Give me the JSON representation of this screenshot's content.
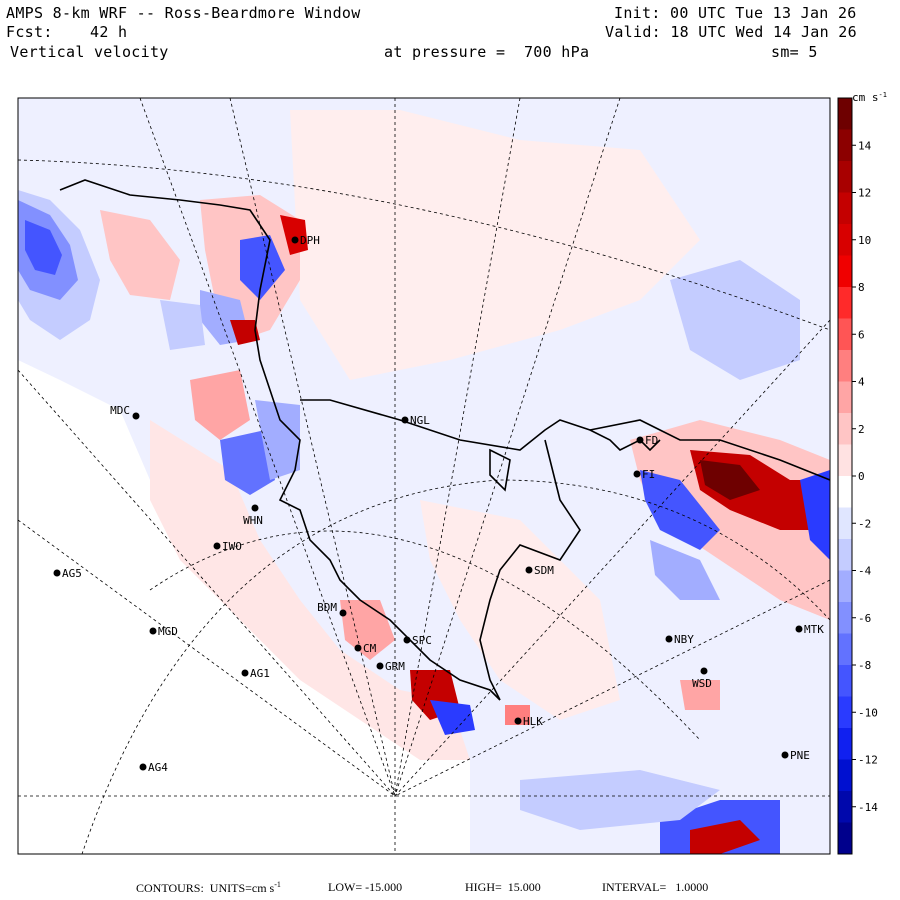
{
  "header": {
    "title": "AMPS 8-km WRF -- Ross-Beardmore Window",
    "forecast_label": "Fcst:",
    "forecast_hours": "42 h",
    "variable": "Vertical velocity",
    "init": "Init: 00 UTC Tue 13 Jan 26",
    "valid": "Valid: 18 UTC Wed 14 Jan 26",
    "pressure": "at pressure =  700 hPa",
    "smoothing": "sm= 5"
  },
  "colorbar": {
    "units": "cm s",
    "units_exp": "-1",
    "ticks": [
      "14",
      "12",
      "10",
      "8",
      "6",
      "4",
      "2",
      "0",
      "-2",
      "-4",
      "-6",
      "-8",
      "-10",
      "-12",
      "-14"
    ],
    "colors": [
      "#6e0000",
      "#8c0000",
      "#a80000",
      "#c40000",
      "#d80000",
      "#f00000",
      "#ff2a2a",
      "#ff5555",
      "#ff7f7f",
      "#ffa5a5",
      "#ffc5c5",
      "#ffe2e2",
      "#ffffff",
      "#e0e6ff",
      "#c4ccff",
      "#a2adff",
      "#8290ff",
      "#6272ff",
      "#4455ff",
      "#2a3bff",
      "#1020f0",
      "#0010d0",
      "#0008ac",
      "#00008c"
    ]
  },
  "stations": [
    {
      "id": "DPH",
      "label": "DPH"
    },
    {
      "id": "NGL",
      "label": "NGL"
    },
    {
      "id": "MDC",
      "label": "MDC"
    },
    {
      "id": "FD",
      "label": "FD"
    },
    {
      "id": "FI",
      "label": "FI"
    },
    {
      "id": "WHN",
      "label": "WHN"
    },
    {
      "id": "IWO",
      "label": "IWO"
    },
    {
      "id": "AG5",
      "label": "AG5"
    },
    {
      "id": "SDM",
      "label": "SDM"
    },
    {
      "id": "BDM",
      "label": "BDM"
    },
    {
      "id": "SPC",
      "label": "SPC"
    },
    {
      "id": "MGD",
      "label": "MGD"
    },
    {
      "id": "NBY",
      "label": "NBY"
    },
    {
      "id": "MTK",
      "label": "MTK"
    },
    {
      "id": "GRM",
      "label": "GRM"
    },
    {
      "id": "CM",
      "label": "CM"
    },
    {
      "id": "AG1",
      "label": "AG1"
    },
    {
      "id": "WSD",
      "label": "WSD"
    },
    {
      "id": "HLK",
      "label": "HLK"
    },
    {
      "id": "AG4",
      "label": "AG4"
    },
    {
      "id": "PNE",
      "label": "PNE"
    }
  ],
  "footer": {
    "contours": "CONTOURS:  UNITS=cm s",
    "units_exp": "-1",
    "low": "LOW= -15.000",
    "high": "HIGH=  15.000",
    "interval": "INTERVAL=   1.0000"
  },
  "colors": {
    "positive": "#ff5555",
    "negative": "#4455ff",
    "background": "#f0f2ff",
    "land_edge": "#000000"
  }
}
